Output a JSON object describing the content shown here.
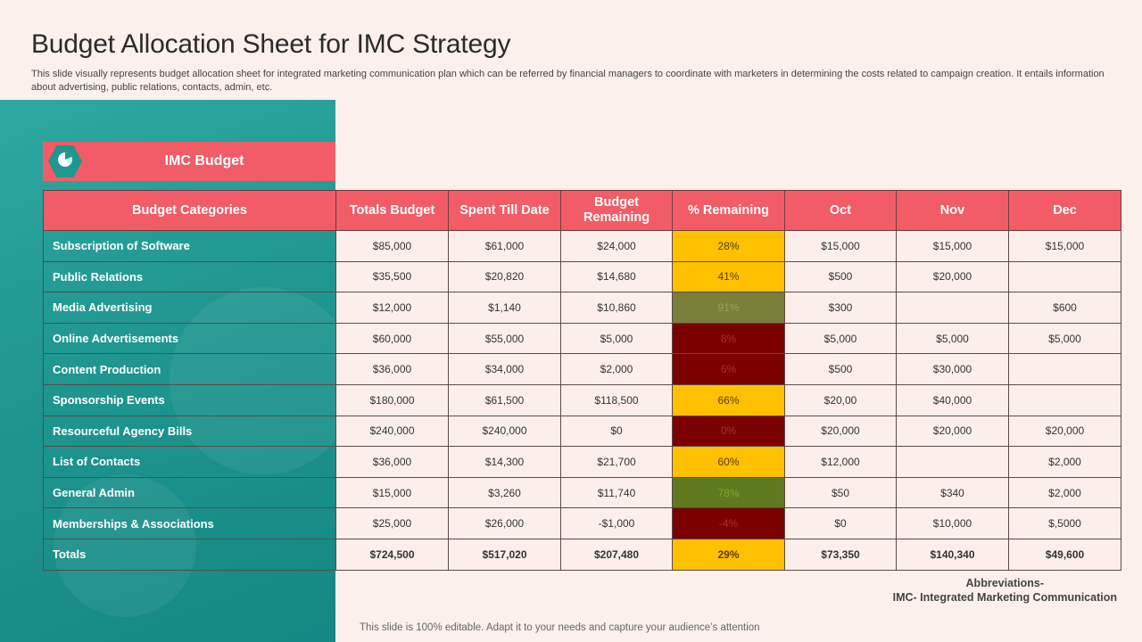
{
  "title": "Budget Allocation Sheet for IMC Strategy",
  "subtitle": "This slide visually represents budget allocation sheet for integrated marketing communication plan which can be referred by financial managers to coordinate with marketers in determining the costs related to campaign creation. It entails information about advertising, public relations, contacts, admin, etc.",
  "banner": {
    "label": "IMC Budget",
    "icon": "pie-chart-icon"
  },
  "table": {
    "headers": [
      "Budget Categories",
      "Totals Budget",
      "Spent Till Date",
      "Budget Remaining",
      "% Remaining",
      "Oct",
      "Nov",
      "Dec"
    ],
    "rows": [
      {
        "category": "Subscription  of Software",
        "total": "$85,000",
        "spent": "$61,000",
        "remaining": "$24,000",
        "pct": "28%",
        "status": "yellow",
        "oct": "$15,000",
        "nov": "$15,000",
        "dec": "$15,000"
      },
      {
        "category": "Public Relations",
        "total": "$35,500",
        "spent": "$20,820",
        "remaining": "$14,680",
        "pct": "41%",
        "status": "yellow",
        "oct": "$500",
        "nov": "$20,000",
        "dec": ""
      },
      {
        "category": "Media Advertising",
        "total": "$12,000",
        "spent": "$1,140",
        "remaining": "$10,860",
        "pct": "91%",
        "status": "olive",
        "oct": "$300",
        "nov": "",
        "dec": "$600"
      },
      {
        "category": "Online Advertisements",
        "total": "$60,000",
        "spent": "$55,000",
        "remaining": "$5,000",
        "pct": "8%",
        "status": "darkred",
        "oct": "$5,000",
        "nov": "$5,000",
        "dec": "$5,000"
      },
      {
        "category": "Content Production",
        "total": "$36,000",
        "spent": "$34,000",
        "remaining": "$2,000",
        "pct": "6%",
        "status": "darkred",
        "oct": "$500",
        "nov": "$30,000",
        "dec": ""
      },
      {
        "category": "Sponsorship  Events",
        "total": "$180,000",
        "spent": "$61,500",
        "remaining": "$118,500",
        "pct": "66%",
        "status": "yellow",
        "oct": "$20,00",
        "nov": "$40,000",
        "dec": ""
      },
      {
        "category": "Resourceful Agency Bills",
        "total": "$240,000",
        "spent": "$240,000",
        "remaining": "$0",
        "pct": "0%",
        "status": "darkred",
        "oct": "$20,000",
        "nov": "$20,000",
        "dec": "$20,000"
      },
      {
        "category": "List of Contacts",
        "total": "$36,000",
        "spent": "$14,300",
        "remaining": "$21,700",
        "pct": "60%",
        "status": "yellow",
        "oct": "$12,000",
        "nov": "",
        "dec": "$2,000"
      },
      {
        "category": "General Admin",
        "total": "$15,000",
        "spent": "$3,260",
        "remaining": "$11,740",
        "pct": "78%",
        "status": "green",
        "oct": "$50",
        "nov": "$340",
        "dec": "$2,000"
      },
      {
        "category": "Memberships & Associations",
        "total": "$25,000",
        "spent": "$26,000",
        "remaining": "-$1,000",
        "pct": "-4%",
        "status": "darkred",
        "oct": "$0",
        "nov": "$10,000",
        "dec": "$,5000"
      },
      {
        "category": "Totals",
        "total": "$724,500",
        "spent": "$517,020",
        "remaining": "$207,480",
        "pct": "29%",
        "status": "yellow",
        "oct": "$73,350",
        "nov": "$140,340",
        "dec": "$49,600"
      }
    ]
  },
  "abbreviations": {
    "heading": "Abbreviations-",
    "text": "IMC- Integrated Marketing Communication"
  },
  "footer": "This slide is 100% editable. Adapt it to your needs and capture your audience’s attention",
  "colors": {
    "background": "#FBF0EC",
    "teal": "#1F9690",
    "coral": "#F25C67",
    "yellow": "#FFC000",
    "darkred": "#7B0000",
    "olive": "#7A7F3A",
    "green": "#5F7A1E"
  }
}
